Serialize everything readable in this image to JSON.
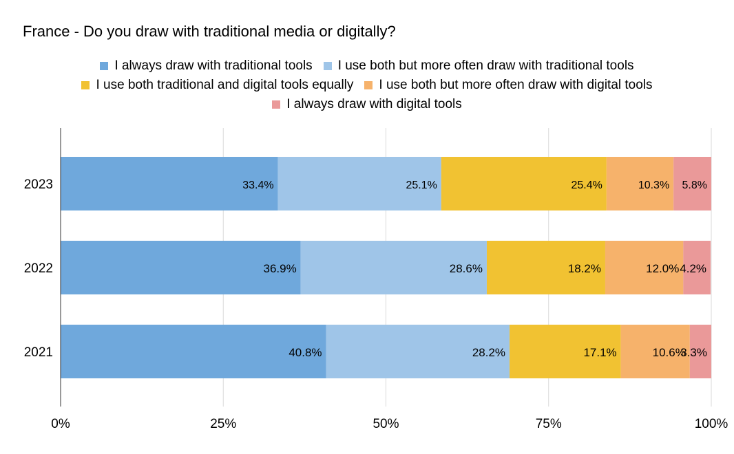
{
  "chart_data": {
    "type": "bar",
    "orientation": "horizontal",
    "stacked": "percent",
    "title": "France - Do you draw with traditional media or digitally?",
    "categories": [
      "2023",
      "2022",
      "2021"
    ],
    "series": [
      {
        "name": "I always draw with traditional tools",
        "color": "#6fa8dc",
        "values": [
          33.4,
          36.9,
          40.8
        ],
        "labels": [
          "33.4%",
          "36.9%",
          "40.8%"
        ]
      },
      {
        "name": "I use both but more often draw with traditional tools",
        "color": "#9fc5e8",
        "values": [
          25.1,
          28.6,
          28.2
        ],
        "labels": [
          "25.1%",
          "28.6%",
          "28.2%"
        ]
      },
      {
        "name": "I use both traditional and digital tools equally",
        "color": "#f1c232",
        "values": [
          25.4,
          18.2,
          17.1
        ],
        "labels": [
          "25.4%",
          "18.2%",
          "17.1%"
        ]
      },
      {
        "name": "I use both but more often draw with digital tools",
        "color": "#f6b26b",
        "values": [
          10.3,
          12.0,
          10.6
        ],
        "labels": [
          "10.3%",
          "12.0%",
          "10.6%"
        ]
      },
      {
        "name": "I always draw with digital tools",
        "color": "#ea9999",
        "values": [
          5.8,
          4.2,
          3.3
        ],
        "labels": [
          "5.8%",
          "4.2%",
          "3.3%"
        ]
      }
    ],
    "xticks": [
      "0%",
      "25%",
      "50%",
      "75%",
      "100%"
    ],
    "xlim": [
      0,
      100
    ],
    "grid": true,
    "legend_position": "top"
  }
}
